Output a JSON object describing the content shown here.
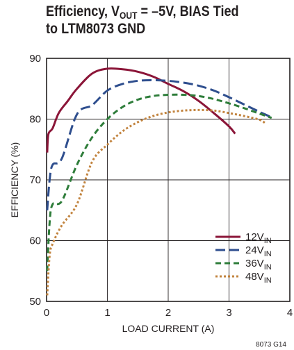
{
  "chart_data": {
    "type": "line",
    "title_main": "Efficiency, V",
    "title_sub": "OUT",
    "title_rest": " = –5V, BIAS Tied",
    "title_line2": "to LTM8073 GND",
    "xlabel": "LOAD CURRENT (A)",
    "ylabel": "EFFICIENCY (%)",
    "xlim": [
      0,
      4
    ],
    "ylim": [
      50,
      90
    ],
    "xticks": [
      0,
      1,
      2,
      3,
      4
    ],
    "yticks": [
      50,
      60,
      70,
      80,
      90
    ],
    "grid": true,
    "legend_position": "lower-right",
    "figure_code": "8073 G14",
    "series": [
      {
        "name": "12V",
        "name_sub": "IN",
        "color": "#8b1538",
        "dash": "solid",
        "x": [
          0.01,
          0.03,
          0.1,
          0.2,
          0.35,
          0.5,
          0.75,
          1.0,
          1.25,
          1.5,
          1.75,
          2.0,
          2.25,
          2.5,
          2.75,
          3.0,
          3.1
        ],
        "y": [
          74.5,
          77.5,
          78.5,
          81.0,
          83.0,
          85.0,
          87.5,
          88.3,
          88.2,
          87.8,
          87.0,
          85.8,
          84.6,
          83.0,
          81.0,
          78.8,
          77.6
        ]
      },
      {
        "name": "24V",
        "name_sub": "IN",
        "color": "#2e4e8e",
        "dash": "long",
        "x": [
          0.01,
          0.05,
          0.1,
          0.25,
          0.5,
          0.75,
          1.0,
          1.25,
          1.5,
          1.75,
          2.0,
          2.25,
          2.5,
          2.75,
          3.0,
          3.25,
          3.5,
          3.7
        ],
        "y": [
          65.0,
          70.0,
          72.5,
          73.5,
          80.8,
          82.3,
          84.7,
          85.8,
          86.3,
          86.4,
          86.3,
          86.0,
          85.5,
          84.7,
          83.6,
          82.4,
          81.2,
          80.3
        ]
      },
      {
        "name": "36V",
        "name_sub": "IN",
        "color": "#2e7d3a",
        "dash": "medium",
        "x": [
          0.01,
          0.05,
          0.1,
          0.25,
          0.5,
          0.75,
          1.0,
          1.25,
          1.5,
          1.75,
          2.0,
          2.25,
          2.5,
          2.75,
          3.0,
          3.25,
          3.5,
          3.7
        ],
        "y": [
          55.0,
          63.0,
          66.0,
          66.5,
          72.5,
          77.0,
          80.0,
          82.0,
          83.2,
          83.8,
          84.0,
          84.0,
          83.8,
          83.3,
          82.6,
          81.8,
          80.9,
          80.2
        ]
      },
      {
        "name": "48V",
        "name_sub": "IN",
        "color": "#c2843f",
        "dash": "dotted",
        "x": [
          0.01,
          0.05,
          0.1,
          0.25,
          0.5,
          0.75,
          1.0,
          1.25,
          1.5,
          1.75,
          2.0,
          2.25,
          2.5,
          2.75,
          3.0,
          3.25,
          3.5,
          3.6
        ],
        "y": [
          51.0,
          57.5,
          59.5,
          62.5,
          66.0,
          73.0,
          75.8,
          78.0,
          79.5,
          80.5,
          81.1,
          81.4,
          81.5,
          81.4,
          81.0,
          80.5,
          79.9,
          79.3
        ]
      }
    ]
  }
}
